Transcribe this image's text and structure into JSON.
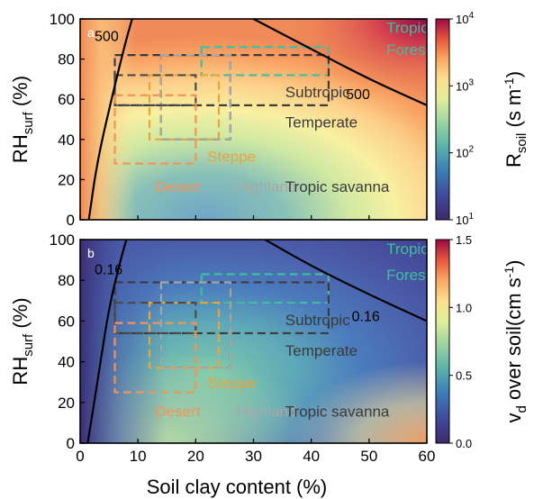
{
  "figure": {
    "xlabel": "Soil clay content (%)",
    "regions": [
      {
        "name": "Tropic Forest",
        "color": "#3fbf9f",
        "x": [
          21,
          43
        ],
        "y_a": [
          72,
          86
        ],
        "y_b": [
          69,
          83
        ]
      },
      {
        "name": "Subtropic",
        "color": "#3c3c3c",
        "x": [
          6,
          43
        ],
        "y_a": [
          57,
          82
        ],
        "y_b": [
          54,
          79
        ]
      },
      {
        "name": "Temperate",
        "color": "#4a4a4a",
        "x": [
          14,
          26
        ],
        "y_a": [
          40,
          82
        ],
        "y_b": [
          37,
          79
        ]
      },
      {
        "name": "Steppe",
        "color": "#e8a53a",
        "x": [
          12,
          24
        ],
        "y_a": [
          40,
          72
        ],
        "y_b": [
          37,
          69
        ]
      },
      {
        "name": "Highland",
        "color": "#a8a8a8",
        "x": [
          14,
          26
        ],
        "y_a": [
          40,
          82
        ],
        "y_b": [
          37,
          79
        ]
      },
      {
        "name": "Tropic savanna",
        "color": "#4a4a4a",
        "x": [
          6,
          20
        ],
        "y_a": [
          57,
          72
        ],
        "y_b": [
          54,
          69
        ]
      },
      {
        "name": "Desert",
        "color": "#f0945a",
        "x": [
          6,
          20
        ],
        "y_a": [
          28,
          62
        ],
        "y_b": [
          25,
          59
        ]
      }
    ],
    "legend_text": {
      "tropic": "Tropic",
      "forest": "Forest",
      "subtropic": "Subtropic",
      "temperate": "Temperate",
      "steppe": "Steppe",
      "highland": "Highland",
      "tropic_savanna": "Tropic savanna",
      "desert": "Desert"
    }
  },
  "chart_data": [
    {
      "type": "heatmap",
      "panel": "a",
      "xlabel": "",
      "ylabel": "RH_surf (%)",
      "ylabel_main": "RH",
      "ylabel_sub": "surf",
      "ylabel_unit": "(%)",
      "xlim": [
        0,
        60
      ],
      "ylim": [
        0,
        100
      ],
      "yticks": [
        "0",
        "20",
        "40",
        "60",
        "80",
        "100"
      ],
      "colorbar": {
        "label": "R_soil (s m^-1)",
        "label_main": "R",
        "label_sub": "soil",
        "label_unit": "(s m",
        "label_sup": "-1",
        "label_close": ")",
        "scale": "log",
        "range": [
          10,
          10000
        ],
        "ticks": [
          {
            "base": "10",
            "exp": "1"
          },
          {
            "base": "10",
            "exp": "2"
          },
          {
            "base": "10",
            "exp": "3"
          },
          {
            "base": "10",
            "exp": "4"
          }
        ]
      },
      "contours": [
        {
          "level": 500,
          "label": "500",
          "segments": [
            [
              [
                1.5,
                0
              ],
              [
                3,
                30
              ],
              [
                6,
                67
              ],
              [
                8,
                90
              ],
              [
                9,
                100
              ]
            ],
            [
              [
                30,
                100
              ],
              [
                40,
                85
              ],
              [
                50,
                70
              ],
              [
                60,
                57
              ]
            ]
          ]
        }
      ],
      "contour_labels": [
        "500",
        "500"
      ]
    },
    {
      "type": "heatmap",
      "panel": "b",
      "xlabel": "Soil clay content (%)",
      "ylabel": "RH_surf (%)",
      "ylabel_main": "RH",
      "ylabel_sub": "surf",
      "ylabel_unit": "(%)",
      "xlim": [
        0,
        60
      ],
      "ylim": [
        0,
        100
      ],
      "xticks": [
        "0",
        "10",
        "20",
        "30",
        "40",
        "50",
        "60"
      ],
      "yticks": [
        "0",
        "20",
        "40",
        "60",
        "80",
        "100"
      ],
      "colorbar": {
        "label": "v_d over soil(cm s^-1)",
        "label_main": "v",
        "label_sub": "d",
        "label_unit": " over soil(cm s",
        "label_sup": "-1",
        "label_close": ")",
        "scale": "linear",
        "range": [
          0,
          1.5
        ],
        "ticks": [
          "0.0",
          "0.5",
          "1.0",
          "1.5"
        ]
      },
      "contours": [
        {
          "level": 0.16,
          "label": "0.16",
          "segments": [
            [
              [
                1.3,
                0
              ],
              [
                3,
                30
              ],
              [
                5,
                67
              ],
              [
                7,
                90
              ],
              [
                8,
                100
              ]
            ],
            [
              [
                32,
                100
              ],
              [
                40,
                87
              ],
              [
                50,
                73
              ],
              [
                60,
                60
              ]
            ]
          ]
        }
      ],
      "contour_labels": [
        "0.16",
        "0.16"
      ]
    }
  ]
}
